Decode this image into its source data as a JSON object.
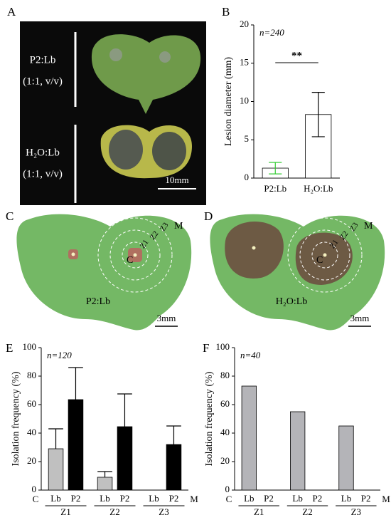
{
  "panels": {
    "letters": [
      "A",
      "B",
      "C",
      "D",
      "E",
      "F"
    ],
    "A": {
      "top_label": "P2:Lb",
      "top_ratio": "(1:1, v/v)",
      "bottom_label": "H₂O:Lb",
      "bottom_ratio": "(1:1, v/v)",
      "scale": "10mm"
    },
    "C": {
      "center": "C",
      "zones": [
        "Z1",
        "Z2",
        "Z3"
      ],
      "margin": "M",
      "label": "P2:Lb",
      "scale": "3mm"
    },
    "D": {
      "center": "C",
      "zones": [
        "Z1",
        "Z2",
        "Z3"
      ],
      "margin": "M",
      "label": "H₂O:Lb",
      "scale": "3mm"
    }
  },
  "chart_data": [
    {
      "type": "bar",
      "ylabel": "Lesion diameter (mm)",
      "annotation": "n=240",
      "significance": "**",
      "categories": [
        "P2:Lb",
        "H₂O:Lb"
      ],
      "values": [
        1.3,
        8.3
      ],
      "errors": [
        0.75,
        2.9
      ],
      "error_colors": [
        "#33cc33",
        "#000000"
      ],
      "color": "#ffffff",
      "ylim": [
        0,
        20
      ],
      "yticks": [
        0,
        5,
        10,
        15,
        20
      ]
    },
    {
      "type": "bar",
      "ylabel": "Isolation frequency (%)",
      "annotation": "n=120",
      "categories": [
        "Z1",
        "Z2",
        "Z3"
      ],
      "x_start": "C",
      "x_end": "M",
      "series": [
        {
          "name": "Lb",
          "color": "#c0c0c0",
          "values": [
            29,
            9,
            null
          ],
          "errors": [
            14,
            4,
            null
          ]
        },
        {
          "name": "P2",
          "color": "#000000",
          "values": [
            63.5,
            44.5,
            32
          ],
          "errors": [
            22.5,
            23,
            13
          ]
        }
      ],
      "ylim": [
        0,
        100
      ],
      "yticks": [
        0,
        20,
        40,
        60,
        80,
        100
      ]
    },
    {
      "type": "bar",
      "ylabel": "Isolation frequency (%)",
      "annotation": "n=40",
      "categories": [
        "Z1",
        "Z2",
        "Z3"
      ],
      "x_start": "C",
      "x_end": "M",
      "series": [
        {
          "name": "Lb",
          "color": "#b4b4b8",
          "values": [
            73,
            55,
            45
          ]
        },
        {
          "name": "P2",
          "color": "#000000",
          "values": [
            0,
            0,
            0
          ]
        }
      ],
      "ylim": [
        0,
        100
      ],
      "yticks": [
        0,
        20,
        40,
        60,
        80,
        100
      ]
    }
  ]
}
